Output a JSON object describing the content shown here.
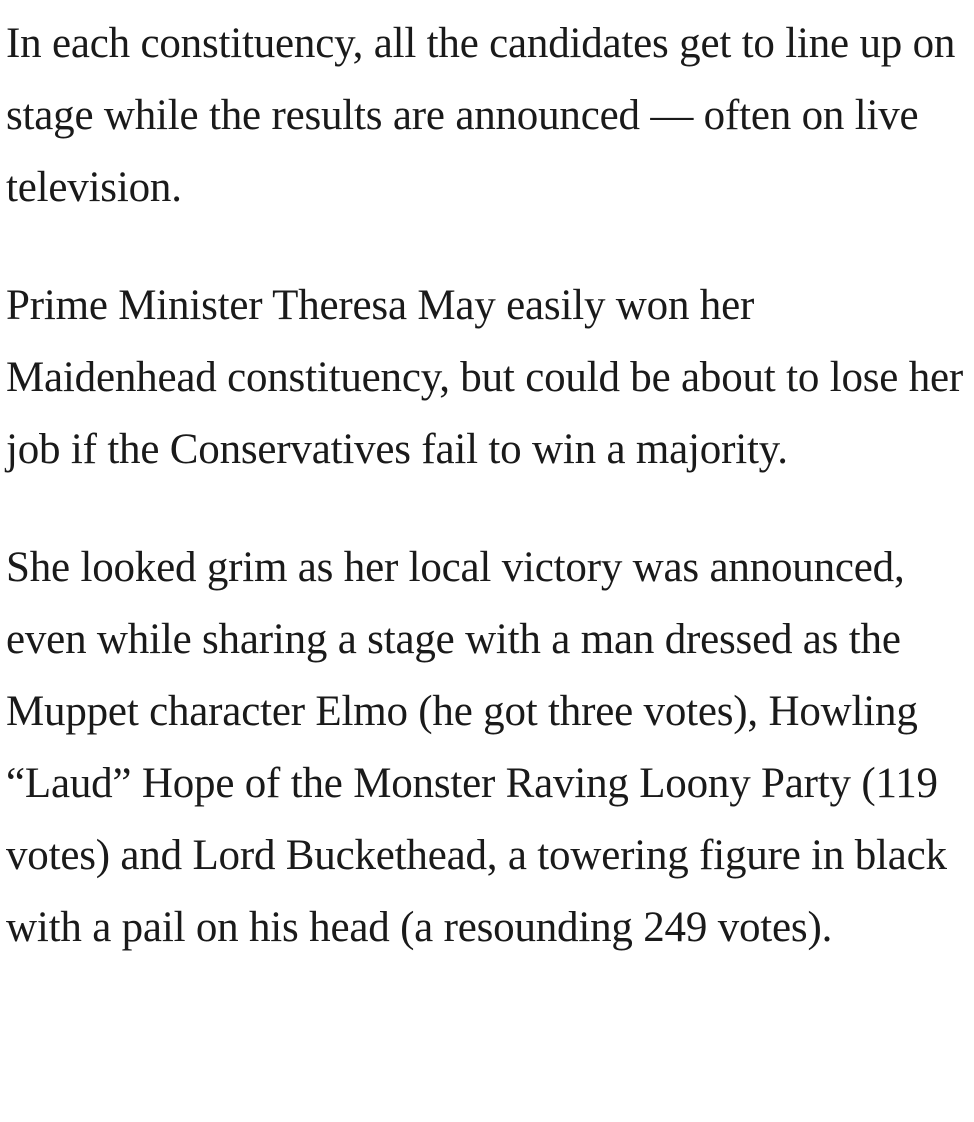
{
  "article": {
    "paragraphs": [
      "In each constituency, all the candidates get to line up on stage while the results are announced — often on live television.",
      "Prime Minister Theresa May easily won her Maidenhead constituency, but could be about to lose her job if the Conservatives fail to win a majority.",
      "She looked grim as her local victory was announced, even while sharing a stage with a man dressed as the Muppet character Elmo (he got three votes), Howling “Laud” Hope of the Monster Raving Loony Party (119 votes) and Lord Buckethead, a towering figure in black with a pail on his head (a resounding 249 votes)."
    ]
  }
}
